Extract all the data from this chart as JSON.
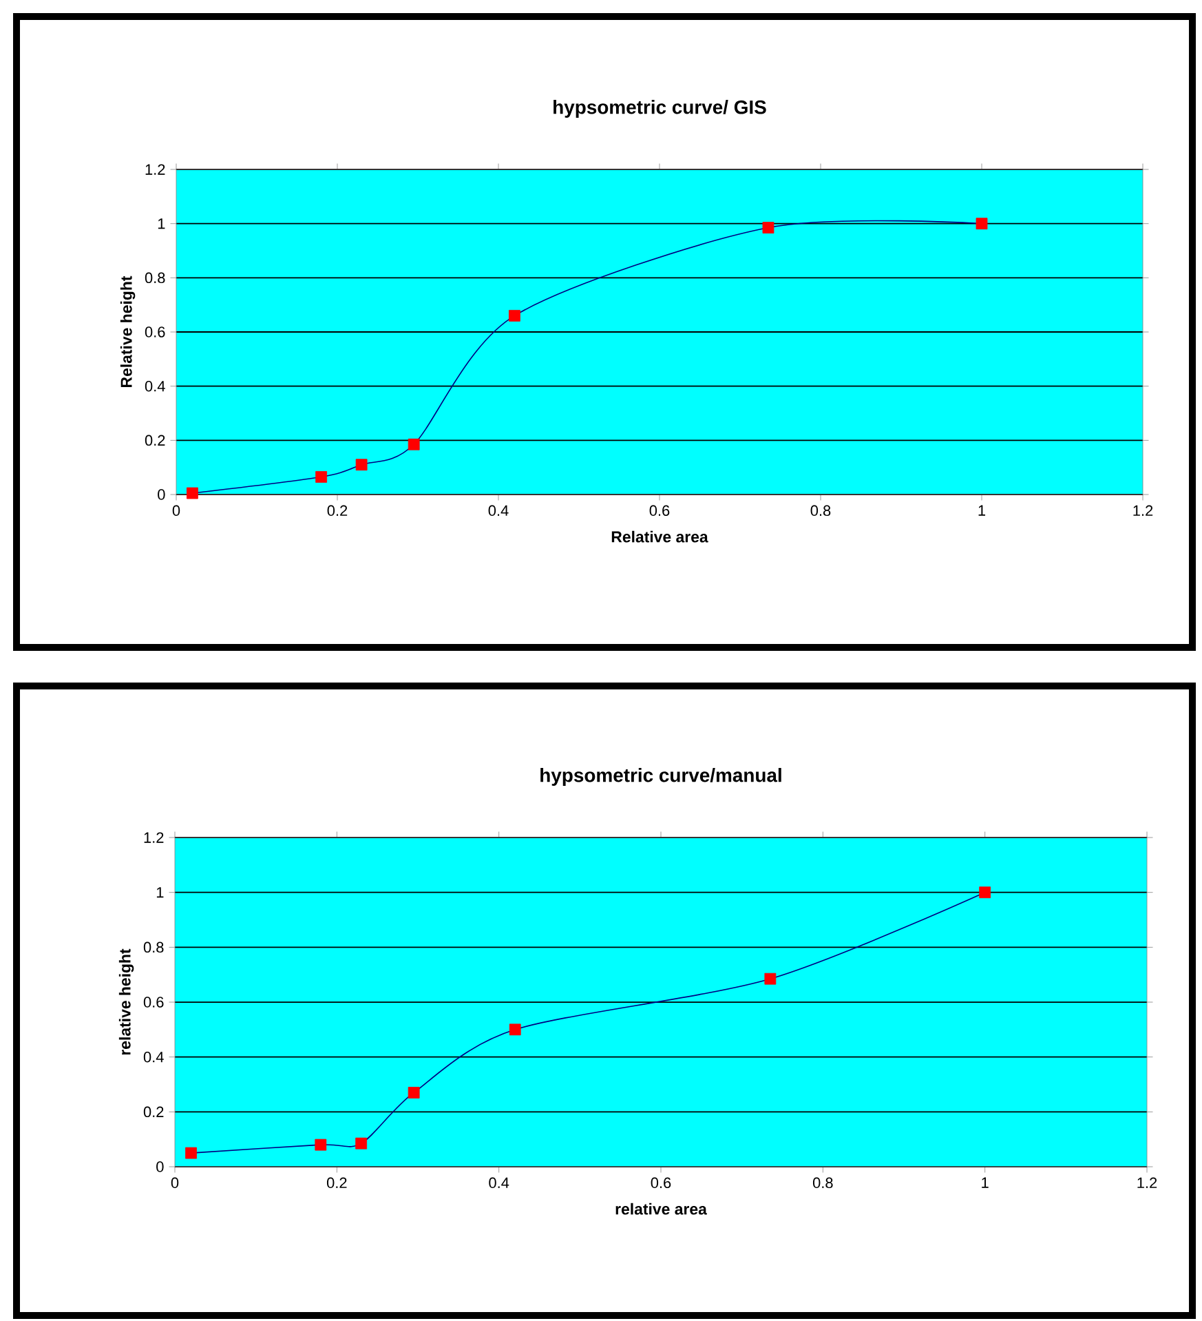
{
  "chart_data": [
    {
      "type": "line",
      "title": "hypsometric curve/ GIS",
      "xlabel": "Relative area",
      "ylabel": "Relative height",
      "xlim": [
        0,
        1.2
      ],
      "ylim": [
        0,
        1.2
      ],
      "xticks": [
        0,
        0.2,
        0.4,
        0.6,
        0.8,
        1,
        1.2
      ],
      "yticks": [
        0,
        0.2,
        0.4,
        0.6,
        0.8,
        1,
        1.2
      ],
      "grid": "y",
      "marker": "square",
      "line_style": "solid",
      "series": [
        {
          "color": "#000080",
          "colors": [
            "#ff0000",
            "#ff0000",
            "#ff0000",
            "#ff0000",
            "#ff0000",
            "#ff0000",
            "#ff0000"
          ],
          "x": [
            0.02,
            0.18,
            0.23,
            0.295,
            0.42,
            0.735,
            1.0
          ],
          "values": [
            0.005,
            0.065,
            0.11,
            0.185,
            0.66,
            0.985,
            1.0
          ]
        }
      ]
    },
    {
      "type": "line",
      "title": "hypsometric curve/manual",
      "xlabel": "relative area",
      "ylabel": "relative height",
      "xlim": [
        0,
        1.2
      ],
      "ylim": [
        0,
        1.2
      ],
      "xticks": [
        0,
        0.2,
        0.4,
        0.6,
        0.8,
        1,
        1.2
      ],
      "yticks": [
        0,
        0.2,
        0.4,
        0.6,
        0.8,
        1,
        1.2
      ],
      "grid": "y",
      "marker": "square",
      "line_style": "solid",
      "series": [
        {
          "color": "#000080",
          "colors": [
            "#ff0000",
            "#ff0000",
            "#ff0000",
            "#ff0000",
            "#ff0000",
            "#ff0000",
            "#ff0000"
          ],
          "x": [
            0.02,
            0.18,
            0.23,
            0.295,
            0.42,
            0.735,
            1.0
          ],
          "values": [
            0.05,
            0.08,
            0.085,
            0.27,
            0.5,
            0.685,
            1.0
          ]
        }
      ]
    }
  ]
}
